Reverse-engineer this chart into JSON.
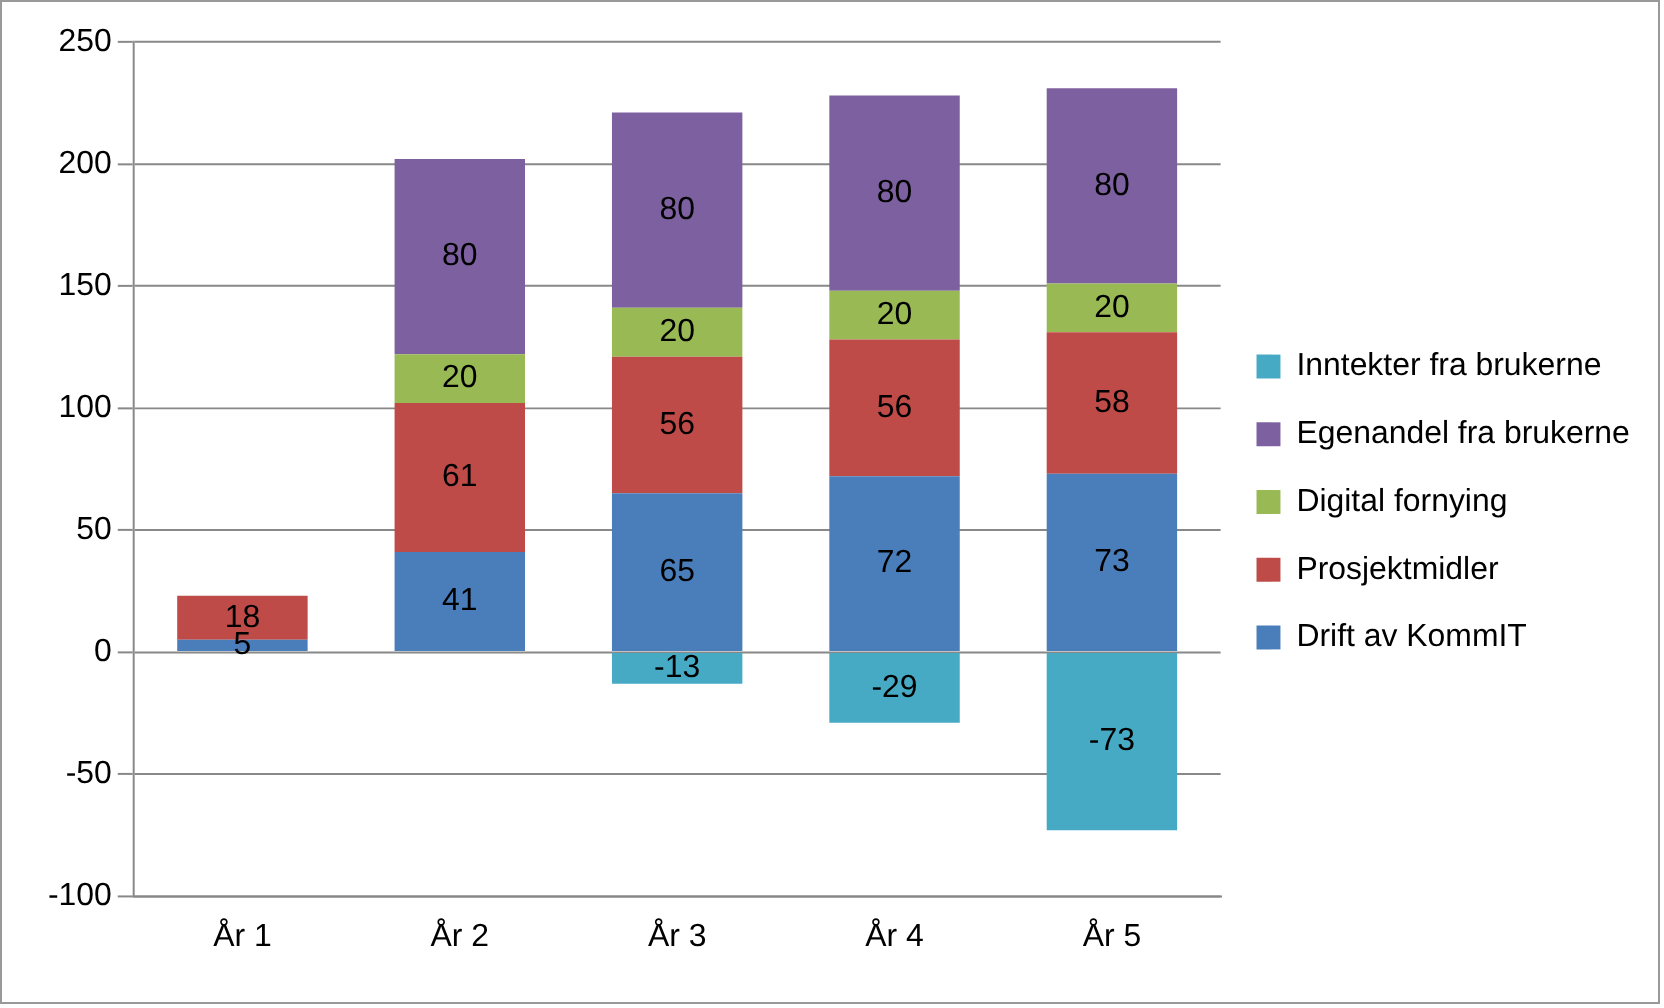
{
  "chart_data": {
    "type": "bar",
    "stacked": true,
    "categories": [
      "År 1",
      "År 2",
      "År 3",
      "År 4",
      "År 5"
    ],
    "series": [
      {
        "name": "Drift av KommIT",
        "color": "#4a7ebb",
        "values": [
          5,
          41,
          65,
          72,
          73
        ]
      },
      {
        "name": "Prosjektmidler",
        "color": "#be4b48",
        "values": [
          18,
          61,
          56,
          56,
          58
        ]
      },
      {
        "name": "Digital fornying",
        "color": "#98b954",
        "values": [
          null,
          20,
          20,
          20,
          20
        ]
      },
      {
        "name": "Egenandel fra brukerne",
        "color": "#7d60a0",
        "values": [
          null,
          80,
          80,
          80,
          80
        ]
      },
      {
        "name": "Inntekter fra brukerne",
        "color": "#46aac5",
        "values": [
          null,
          null,
          -13,
          -29,
          -73
        ]
      }
    ],
    "ylim": [
      -100,
      250
    ],
    "yticks": [
      -100,
      -50,
      0,
      50,
      100,
      150,
      200,
      250
    ],
    "grid": "y",
    "legend": "right",
    "data_labels": true
  }
}
